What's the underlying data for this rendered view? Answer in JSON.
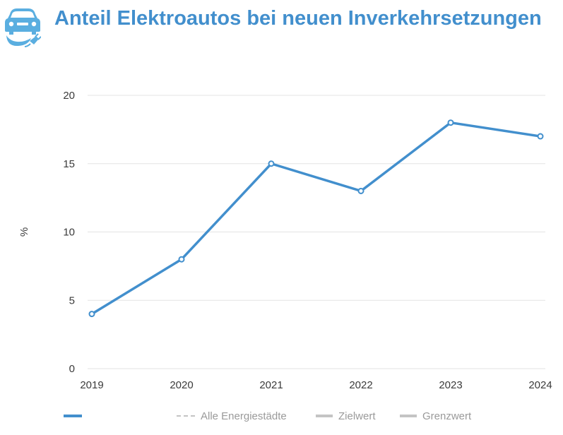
{
  "header": {
    "title": "Anteil Elektroautos bei neuen Inverkehrsetzungen",
    "icon": "electric-car-plug-icon"
  },
  "colors": {
    "accent": "#428fcd",
    "logo": "#5aaee0",
    "grid": "#e3e3e3",
    "legend_muted": "#c4c4c4"
  },
  "chart_data": {
    "type": "line",
    "categories": [
      "2019",
      "2020",
      "2021",
      "2022",
      "2023",
      "2024"
    ],
    "series": [
      {
        "name": "",
        "values": [
          4,
          8,
          15,
          13,
          18,
          17
        ]
      }
    ],
    "title": "Anteil Elektroautos bei neuen Inverkehrsetzungen",
    "xlabel": "",
    "ylabel": "%",
    "ylim": [
      0,
      20
    ],
    "yticks": [
      0,
      5,
      10,
      15,
      20
    ],
    "grid": true,
    "legend_placement": "bottom"
  },
  "legend": {
    "items": [
      {
        "label": "",
        "style": "solid",
        "color": "#428fcd"
      },
      {
        "label": "Alle Energiestädte",
        "style": "dashed",
        "color": "#c4c4c4"
      },
      {
        "label": "Zielwert",
        "style": "solid",
        "color": "#c4c4c4"
      },
      {
        "label": "Grenzwert",
        "style": "solid",
        "color": "#c4c4c4"
      }
    ]
  }
}
